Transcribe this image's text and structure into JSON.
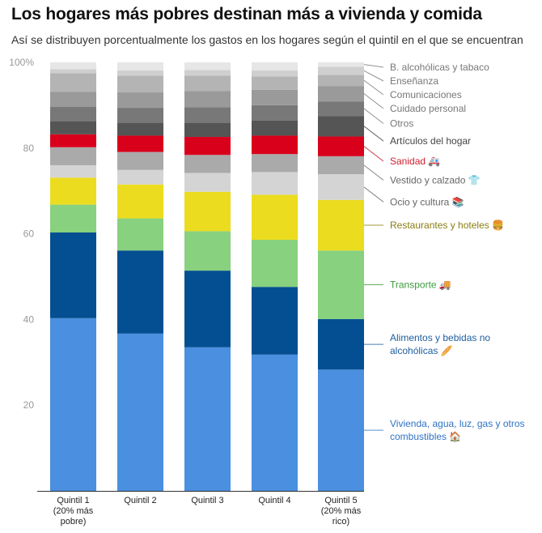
{
  "title": "Los hogares más pobres destinan más a vivienda y comida",
  "subtitle": "Así se distribuyen porcentualmente los gastos en los hogares según el quintil en el que se encuentran",
  "chart_data": {
    "type": "bar",
    "stacked": true,
    "ylim": [
      0,
      100
    ],
    "yticks": [
      "100%",
      "80",
      "60",
      "40",
      "20"
    ],
    "ytick_values": [
      100,
      80,
      60,
      40,
      20
    ],
    "categories": [
      [
        "Quintil 1",
        "(20% más",
        "pobre)"
      ],
      [
        "Quintil 2"
      ],
      [
        "Quintil 3"
      ],
      [
        "Quintil 4"
      ],
      [
        "Quintil 5",
        "(20% más",
        "rico)"
      ]
    ],
    "series": [
      {
        "name": [
          "Vivienda, agua, luz, gas y otros",
          "combustibles 🏠"
        ],
        "color": "#4a8fe0",
        "label_color": "#2f73c6",
        "values": [
          40.3,
          36.7,
          33.5,
          31.8,
          28.3
        ]
      },
      {
        "name": [
          "Alimentos y bebidas no",
          "alcohólicas 🥖"
        ],
        "color": "#044f91",
        "label_color": "#1d5d9f",
        "values": [
          20.0,
          19.4,
          17.9,
          15.8,
          11.8
        ]
      },
      {
        "name": [
          "Transporte 🚚"
        ],
        "color": "#88d17e",
        "label_color": "#3d9a3d",
        "values": [
          6.5,
          7.5,
          9.2,
          11.0,
          16.0
        ]
      },
      {
        "name": [
          "Restaurantes y hoteles 🍔"
        ],
        "color": "#ecdc1f",
        "label_color": "#8a7e12",
        "values": [
          6.3,
          7.9,
          9.2,
          10.5,
          11.8
        ]
      },
      {
        "name": [
          "Ocio y cultura 📚"
        ],
        "color": "#d4d4d4",
        "label_color": "#666666",
        "values": [
          2.9,
          3.4,
          4.4,
          5.3,
          6.0
        ]
      },
      {
        "name": [
          "Vestido y calzado 👕"
        ],
        "color": "#aaaaaa",
        "label_color": "#666666",
        "values": [
          4.2,
          4.2,
          4.2,
          4.2,
          4.2
        ]
      },
      {
        "name": [
          "Sanidad 🚑"
        ],
        "color": "#d9001b",
        "label_color": "#cc1f2f",
        "values": [
          3.0,
          3.8,
          4.2,
          4.3,
          4.6
        ]
      },
      {
        "name": [
          "Artículos del hogar"
        ],
        "color": "#555555",
        "label_color": "#444444",
        "values": [
          3.0,
          3.0,
          3.3,
          3.5,
          4.8
        ]
      },
      {
        "name": [
          "Otros"
        ],
        "color": "#787878",
        "label_color": "#777777",
        "values": [
          3.4,
          3.5,
          3.6,
          3.6,
          3.4
        ]
      },
      {
        "name": [
          "Cuidado personal"
        ],
        "color": "#9a9a9a",
        "label_color": "#777777",
        "values": [
          3.5,
          3.6,
          3.8,
          3.6,
          3.6
        ]
      },
      {
        "name": [
          "Comunicaciones"
        ],
        "color": "#b4b4b4",
        "label_color": "#777777",
        "values": [
          4.4,
          3.9,
          3.6,
          3.1,
          2.6
        ]
      },
      {
        "name": [
          "Enseñanza"
        ],
        "color": "#cfcfcf",
        "label_color": "#777777",
        "values": [
          0.9,
          1.2,
          1.3,
          1.4,
          1.9
        ]
      },
      {
        "name": [
          "B. alcohólicas y tabaco"
        ],
        "color": "#e6e6e6",
        "label_color": "#777777",
        "values": [
          1.6,
          1.9,
          1.8,
          1.9,
          1.0
        ]
      }
    ]
  }
}
